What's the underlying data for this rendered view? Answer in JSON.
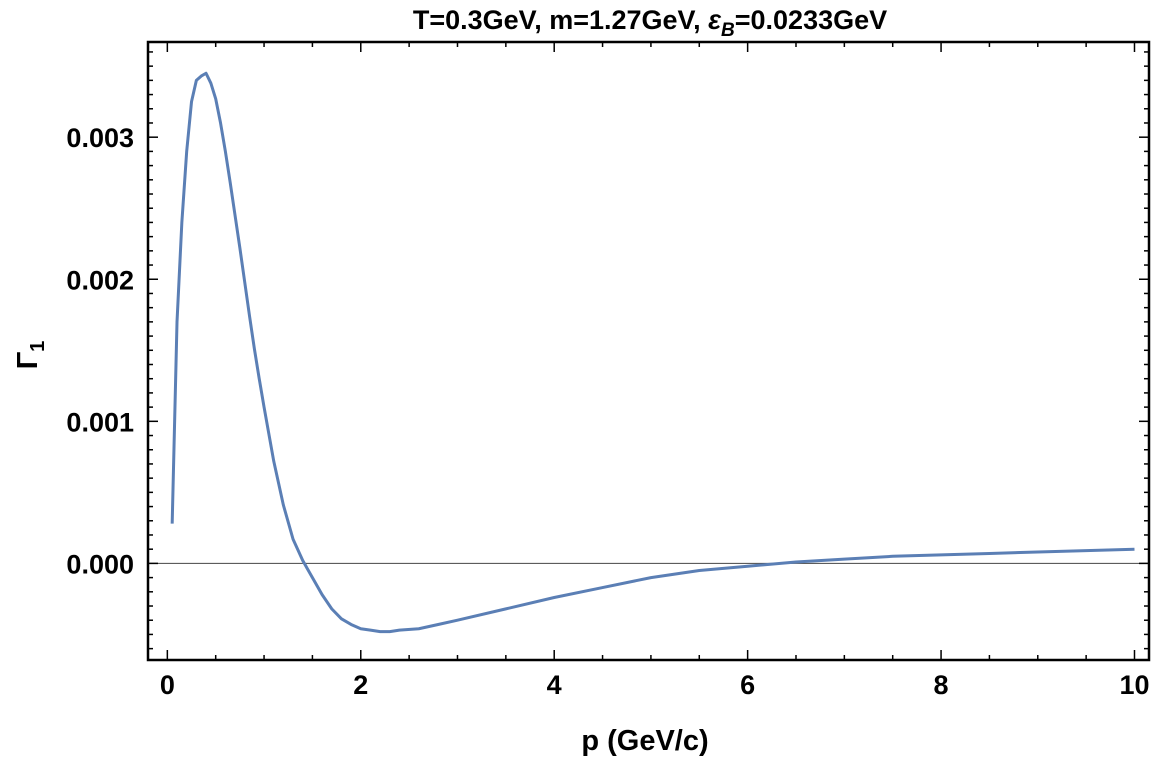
{
  "chart_data": {
    "type": "line",
    "title": {
      "prefix": "T=0.3GeV, m=1.27GeV, ",
      "symbol": "ε",
      "subscript": "B",
      "suffix": "=0.0233GeV"
    },
    "xlabel": "p (GeV/c)",
    "ylabel": {
      "base": "Γ",
      "subscript": "1"
    },
    "xlim": [
      -0.2,
      10.15
    ],
    "ylim": [
      -0.00068,
      0.00367
    ],
    "xticks": [
      0,
      2,
      4,
      6,
      8,
      10
    ],
    "xtick_labels": [
      "0",
      "2",
      "4",
      "6",
      "8",
      "10"
    ],
    "yticks": [
      0.0,
      0.001,
      0.002,
      0.003
    ],
    "ytick_labels": [
      "0.000",
      "0.001",
      "0.002",
      "0.003"
    ],
    "grid": false,
    "series": [
      {
        "color": "#5b7fb5",
        "x": [
          0.05,
          0.1,
          0.15,
          0.2,
          0.25,
          0.3,
          0.35,
          0.4,
          0.45,
          0.5,
          0.55,
          0.6,
          0.65,
          0.7,
          0.75,
          0.8,
          0.85,
          0.9,
          0.95,
          1.0,
          1.1,
          1.2,
          1.3,
          1.4,
          1.45,
          1.5,
          1.6,
          1.7,
          1.8,
          1.9,
          2.0,
          2.1,
          2.2,
          2.3,
          2.4,
          2.6,
          2.8,
          3.0,
          3.5,
          4.0,
          4.5,
          5.0,
          5.5,
          6.0,
          6.5,
          7.0,
          7.5,
          8.0,
          8.5,
          9.0,
          9.5,
          10.0
        ],
        "y": [
          0.00028,
          0.0017,
          0.0024,
          0.0029,
          0.00325,
          0.0034,
          0.00343,
          0.00345,
          0.00338,
          0.00327,
          0.0031,
          0.0029,
          0.00268,
          0.00245,
          0.00222,
          0.00198,
          0.00174,
          0.00151,
          0.0013,
          0.0011,
          0.00072,
          0.00041,
          0.00017,
          2e-05,
          -4e-05,
          -0.0001,
          -0.00022,
          -0.00032,
          -0.00039,
          -0.00043,
          -0.00046,
          -0.00047,
          -0.00048,
          -0.00048,
          -0.00047,
          -0.00046,
          -0.00043,
          -0.0004,
          -0.00032,
          -0.00024,
          -0.00017,
          -0.0001,
          -5e-05,
          -2e-05,
          1e-05,
          3e-05,
          5e-05,
          6e-05,
          7e-05,
          8e-05,
          9e-05,
          0.0001
        ]
      }
    ]
  }
}
